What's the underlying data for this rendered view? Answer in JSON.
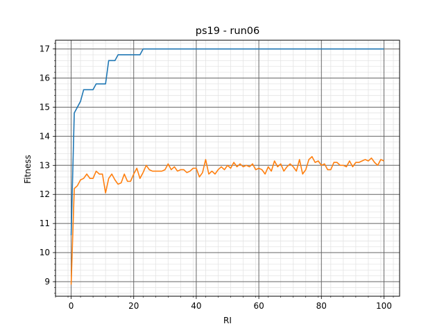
{
  "chart_data": {
    "type": "line",
    "title": "ps19 - run06",
    "xlabel": "RI",
    "ylabel": "Fitness",
    "xlim": [
      -5,
      105
    ],
    "ylim": [
      8.5,
      17.3
    ],
    "xticks": [
      0,
      20,
      40,
      60,
      80,
      100
    ],
    "yticks": [
      9,
      10,
      11,
      12,
      13,
      14,
      15,
      16,
      17
    ],
    "grid": true,
    "series": [
      {
        "color": "#1f77b4",
        "x": [
          0,
          1,
          2,
          3,
          4,
          5,
          6,
          7,
          8,
          9,
          10,
          11,
          12,
          13,
          14,
          15,
          16,
          17,
          18,
          19,
          20,
          21,
          22,
          23,
          24,
          100
        ],
        "y": [
          10.6,
          14.8,
          15.0,
          15.2,
          15.6,
          15.6,
          15.6,
          15.6,
          15.8,
          15.8,
          15.8,
          15.8,
          16.6,
          16.6,
          16.6,
          16.8,
          16.8,
          16.8,
          16.8,
          16.8,
          16.8,
          16.8,
          16.8,
          17.0,
          17.0,
          17.0
        ]
      },
      {
        "color": "#ff7f0e",
        "x": [
          0,
          1,
          2,
          3,
          4,
          5,
          6,
          7,
          8,
          9,
          10,
          11,
          12,
          13,
          14,
          15,
          16,
          17,
          18,
          19,
          20,
          21,
          22,
          23,
          24,
          25,
          26,
          27,
          28,
          29,
          30,
          31,
          32,
          33,
          34,
          35,
          36,
          37,
          38,
          39,
          40,
          41,
          42,
          43,
          44,
          45,
          46,
          47,
          48,
          49,
          50,
          51,
          52,
          53,
          54,
          55,
          56,
          57,
          58,
          59,
          60,
          61,
          62,
          63,
          64,
          65,
          66,
          67,
          68,
          69,
          70,
          71,
          72,
          73,
          74,
          75,
          76,
          77,
          78,
          79,
          80,
          81,
          82,
          83,
          84,
          85,
          86,
          87,
          88,
          89,
          90,
          91,
          92,
          93,
          94,
          95,
          96,
          97,
          98,
          99,
          100
        ],
        "y": [
          8.9,
          12.2,
          12.3,
          12.5,
          12.55,
          12.7,
          12.55,
          12.55,
          12.8,
          12.7,
          12.7,
          12.05,
          12.55,
          12.7,
          12.5,
          12.35,
          12.4,
          12.7,
          12.45,
          12.45,
          12.7,
          12.9,
          12.55,
          12.75,
          13.0,
          12.85,
          12.8,
          12.8,
          12.8,
          12.8,
          12.85,
          13.05,
          12.85,
          12.95,
          12.8,
          12.85,
          12.85,
          12.75,
          12.8,
          12.9,
          12.9,
          12.6,
          12.75,
          13.2,
          12.7,
          12.8,
          12.7,
          12.85,
          12.95,
          12.85,
          13.0,
          12.9,
          13.1,
          12.95,
          13.05,
          12.95,
          13.0,
          12.95,
          13.05,
          12.85,
          12.9,
          12.85,
          12.7,
          12.95,
          12.8,
          13.15,
          12.95,
          13.05,
          12.8,
          12.95,
          13.05,
          12.95,
          12.8,
          13.2,
          12.7,
          12.85,
          13.2,
          13.3,
          13.1,
          13.15,
          13.0,
          13.05,
          12.85,
          12.85,
          13.1,
          13.1,
          13.0,
          13.0,
          12.95,
          13.15,
          12.95,
          13.1,
          13.1,
          13.15,
          13.2,
          13.15,
          13.25,
          13.1,
          13.0,
          13.2,
          13.15
        ]
      }
    ]
  }
}
